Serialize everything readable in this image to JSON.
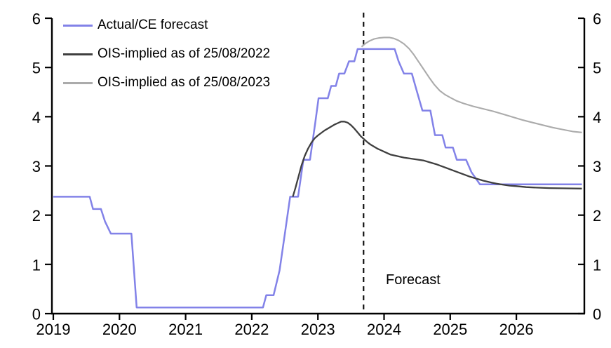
{
  "chart_data": {
    "type": "line",
    "title": "",
    "xlabel": "",
    "ylabel": "",
    "grid": false,
    "legend_position": "top-left",
    "x_axis": {
      "range": [
        2019,
        2027.0
      ],
      "ticks": [
        2019,
        2020,
        2021,
        2022,
        2023,
        2024,
        2025,
        2026
      ]
    },
    "y_axis": {
      "range": [
        0,
        6
      ],
      "ticks": [
        0,
        1,
        2,
        3,
        4,
        5,
        6
      ],
      "dual_sided": true
    },
    "annotations": {
      "forecast_divider_x": 2023.69,
      "forecast_label": "Forecast",
      "divider_style": "dashed-black-vertical"
    },
    "series": [
      {
        "name": "Actual/CE forecast",
        "color": "#8282e8",
        "width": 2.5,
        "points": [
          [
            2019.0,
            2.375
          ],
          [
            2019.55,
            2.375
          ],
          [
            2019.6,
            2.125
          ],
          [
            2019.72,
            2.125
          ],
          [
            2019.78,
            1.875
          ],
          [
            2019.87,
            1.625
          ],
          [
            2020.18,
            1.625
          ],
          [
            2020.26,
            0.125
          ],
          [
            2022.17,
            0.125
          ],
          [
            2022.22,
            0.375
          ],
          [
            2022.33,
            0.375
          ],
          [
            2022.42,
            0.875
          ],
          [
            2022.5,
            1.625
          ],
          [
            2022.58,
            2.375
          ],
          [
            2022.7,
            2.375
          ],
          [
            2022.78,
            3.125
          ],
          [
            2022.88,
            3.125
          ],
          [
            2022.96,
            3.875
          ],
          [
            2023.01,
            4.375
          ],
          [
            2023.15,
            4.375
          ],
          [
            2023.2,
            4.625
          ],
          [
            2023.27,
            4.625
          ],
          [
            2023.32,
            4.875
          ],
          [
            2023.4,
            4.875
          ],
          [
            2023.47,
            5.125
          ],
          [
            2023.55,
            5.125
          ],
          [
            2023.6,
            5.375
          ],
          [
            2024.16,
            5.375
          ],
          [
            2024.22,
            5.125
          ],
          [
            2024.3,
            4.875
          ],
          [
            2024.42,
            4.875
          ],
          [
            2024.5,
            4.5
          ],
          [
            2024.58,
            4.125
          ],
          [
            2024.7,
            4.125
          ],
          [
            2024.77,
            3.625
          ],
          [
            2024.88,
            3.625
          ],
          [
            2024.93,
            3.375
          ],
          [
            2025.04,
            3.375
          ],
          [
            2025.1,
            3.125
          ],
          [
            2025.24,
            3.125
          ],
          [
            2025.32,
            2.875
          ],
          [
            2025.45,
            2.625
          ],
          [
            2026.99,
            2.625
          ]
        ]
      },
      {
        "name": "OIS-implied as of 25/08/2022",
        "color": "#3f3f3f",
        "width": 2.3,
        "points": [
          [
            2022.62,
            2.375
          ],
          [
            2022.66,
            2.55
          ],
          [
            2022.7,
            2.75
          ],
          [
            2022.75,
            3.0
          ],
          [
            2022.8,
            3.2
          ],
          [
            2022.85,
            3.35
          ],
          [
            2022.9,
            3.47
          ],
          [
            2022.95,
            3.56
          ],
          [
            2023.0,
            3.62
          ],
          [
            2023.05,
            3.67
          ],
          [
            2023.1,
            3.72
          ],
          [
            2023.15,
            3.76
          ],
          [
            2023.2,
            3.8
          ],
          [
            2023.25,
            3.84
          ],
          [
            2023.3,
            3.87
          ],
          [
            2023.35,
            3.9
          ],
          [
            2023.4,
            3.9
          ],
          [
            2023.45,
            3.88
          ],
          [
            2023.5,
            3.83
          ],
          [
            2023.55,
            3.76
          ],
          [
            2023.6,
            3.68
          ],
          [
            2023.65,
            3.6
          ],
          [
            2023.7,
            3.54
          ],
          [
            2023.75,
            3.48
          ],
          [
            2023.8,
            3.43
          ],
          [
            2023.85,
            3.39
          ],
          [
            2023.9,
            3.35
          ],
          [
            2023.95,
            3.32
          ],
          [
            2024.0,
            3.29
          ],
          [
            2024.05,
            3.26
          ],
          [
            2024.1,
            3.23
          ],
          [
            2024.2,
            3.2
          ],
          [
            2024.3,
            3.17
          ],
          [
            2024.4,
            3.15
          ],
          [
            2024.5,
            3.13
          ],
          [
            2024.6,
            3.11
          ],
          [
            2024.7,
            3.07
          ],
          [
            2024.8,
            3.03
          ],
          [
            2024.9,
            2.98
          ],
          [
            2025.0,
            2.93
          ],
          [
            2025.1,
            2.88
          ],
          [
            2025.2,
            2.83
          ],
          [
            2025.3,
            2.78
          ],
          [
            2025.4,
            2.74
          ],
          [
            2025.5,
            2.7
          ],
          [
            2025.6,
            2.67
          ],
          [
            2025.7,
            2.64
          ],
          [
            2025.8,
            2.62
          ],
          [
            2025.9,
            2.6
          ],
          [
            2026.0,
            2.59
          ],
          [
            2026.15,
            2.57
          ],
          [
            2026.3,
            2.56
          ],
          [
            2026.5,
            2.55
          ],
          [
            2026.7,
            2.545
          ],
          [
            2026.99,
            2.54
          ]
        ]
      },
      {
        "name": "OIS-implied as of 25/08/2023",
        "color": "#ababab",
        "width": 2.1,
        "points": [
          [
            2023.66,
            5.42
          ],
          [
            2023.72,
            5.49
          ],
          [
            2023.78,
            5.54
          ],
          [
            2023.85,
            5.58
          ],
          [
            2023.92,
            5.6
          ],
          [
            2024.0,
            5.61
          ],
          [
            2024.08,
            5.61
          ],
          [
            2024.15,
            5.59
          ],
          [
            2024.22,
            5.55
          ],
          [
            2024.3,
            5.48
          ],
          [
            2024.38,
            5.38
          ],
          [
            2024.45,
            5.26
          ],
          [
            2024.52,
            5.12
          ],
          [
            2024.6,
            4.96
          ],
          [
            2024.68,
            4.8
          ],
          [
            2024.76,
            4.65
          ],
          [
            2024.84,
            4.53
          ],
          [
            2024.92,
            4.45
          ],
          [
            2025.0,
            4.39
          ],
          [
            2025.1,
            4.32
          ],
          [
            2025.2,
            4.27
          ],
          [
            2025.35,
            4.21
          ],
          [
            2025.5,
            4.16
          ],
          [
            2025.65,
            4.11
          ],
          [
            2025.8,
            4.05
          ],
          [
            2025.95,
            3.99
          ],
          [
            2026.1,
            3.93
          ],
          [
            2026.25,
            3.88
          ],
          [
            2026.4,
            3.83
          ],
          [
            2026.55,
            3.78
          ],
          [
            2026.7,
            3.74
          ],
          [
            2026.85,
            3.7
          ],
          [
            2026.99,
            3.68
          ]
        ]
      }
    ]
  },
  "legend": {
    "items": [
      {
        "label": "Actual/CE forecast",
        "color": "#8282e8"
      },
      {
        "label": "OIS-implied as of 25/08/2022",
        "color": "#3f3f3f"
      },
      {
        "label": "OIS-implied as of 25/08/2023",
        "color": "#ababab"
      }
    ]
  },
  "colors": {
    "axis": "#000000",
    "divider": "#111111",
    "background": "#ffffff"
  }
}
